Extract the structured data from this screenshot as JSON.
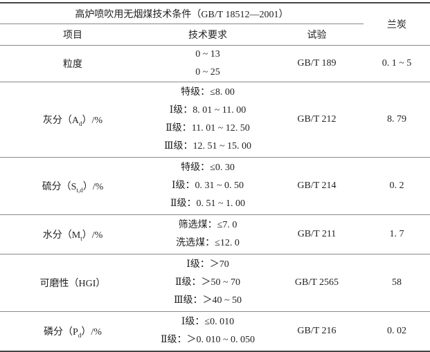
{
  "table": {
    "title": "高炉喷吹用无烟煤技术条件（GB/T 18512—2001）",
    "headers": {
      "item": "项目",
      "requirement": "技术要求",
      "test": "试验",
      "lantan": "兰炭"
    },
    "rows": [
      {
        "item": "粒度",
        "sub": "",
        "suffix": "",
        "requirements": [
          "0 ~ 13",
          "0 ~ 25"
        ],
        "test": "GB/T 189",
        "lantan": "0. 1 ~ 5"
      },
      {
        "item": "灰分（A",
        "sub": "d",
        "suffix": "）/%",
        "requirements": [
          "特级：≤8. 00",
          "Ⅰ级：8. 01 ~ 11. 00",
          "Ⅱ级：11. 01 ~ 12. 50",
          "Ⅲ级：12. 51 ~ 15. 00"
        ],
        "test": "GB/T 212",
        "lantan": "8. 79"
      },
      {
        "item": "硫分（S",
        "sub": "t,d",
        "suffix": "）/%",
        "requirements": [
          "特级：≤0. 30",
          "Ⅰ级：0. 31 ~ 0. 50",
          "Ⅱ级：0. 51 ~ 1. 00"
        ],
        "test": "GB/T 214",
        "lantan": "0. 2"
      },
      {
        "item": "水分（M",
        "sub": "t",
        "suffix": "）/%",
        "requirements": [
          "筛选煤：≤7. 0",
          "洗选煤：≤12. 0"
        ],
        "test": "GB/T 211",
        "lantan": "1. 7"
      },
      {
        "item": "可磨性（HGI）",
        "sub": "",
        "suffix": "",
        "requirements": [
          "Ⅰ级：＞70",
          "Ⅱ级：＞50 ~ 70",
          "Ⅲ级：＞40 ~ 50"
        ],
        "test": "GB/T 2565",
        "lantan": "58"
      },
      {
        "item": "磷分（P",
        "sub": "d",
        "suffix": "）/%",
        "requirements": [
          "Ⅰ级：≤0. 010",
          "Ⅱ级：＞0. 010 ~ 0. 050"
        ],
        "test": "GB/T 216",
        "lantan": "0. 02"
      }
    ]
  }
}
